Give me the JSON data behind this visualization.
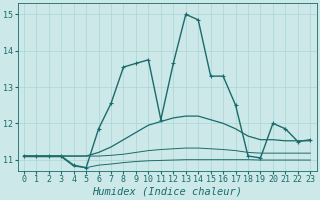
{
  "xlabel": "Humidex (Indice chaleur)",
  "ylabel": "",
  "background_color": "#cce8e8",
  "line_color": "#1a6b6b",
  "xlim": [
    -0.5,
    23.5
  ],
  "ylim": [
    10.7,
    15.3
  ],
  "yticks": [
    11,
    12,
    13,
    14,
    15
  ],
  "xticks": [
    0,
    1,
    2,
    3,
    4,
    5,
    6,
    7,
    8,
    9,
    10,
    11,
    12,
    13,
    14,
    15,
    16,
    17,
    18,
    19,
    20,
    21,
    22,
    23
  ],
  "lines": [
    {
      "x": [
        0,
        1,
        2,
        3,
        4,
        5,
        6,
        7,
        8,
        9,
        10,
        11,
        12,
        13,
        14,
        15,
        16,
        17,
        18,
        19,
        20,
        21,
        22,
        23
      ],
      "y": [
        11.1,
        11.1,
        11.1,
        11.1,
        10.85,
        10.78,
        11.85,
        12.55,
        13.55,
        13.65,
        13.75,
        12.1,
        13.65,
        15.0,
        14.85,
        13.3,
        13.3,
        12.5,
        11.1,
        11.05,
        12.0,
        11.85,
        11.5,
        11.55
      ],
      "marker": "+",
      "lw": 1.0
    },
    {
      "x": [
        0,
        1,
        2,
        3,
        4,
        5,
        6,
        7,
        8,
        9,
        10,
        11,
        12,
        13,
        14,
        15,
        16,
        17,
        18,
        19,
        20,
        21,
        22,
        23
      ],
      "y": [
        11.1,
        11.1,
        11.1,
        11.1,
        11.1,
        11.1,
        11.2,
        11.35,
        11.55,
        11.75,
        11.95,
        12.05,
        12.15,
        12.2,
        12.2,
        12.1,
        12.0,
        11.85,
        11.65,
        11.55,
        11.55,
        11.52,
        11.52,
        11.52
      ],
      "marker": null,
      "lw": 0.9
    },
    {
      "x": [
        0,
        1,
        2,
        3,
        4,
        5,
        6,
        7,
        8,
        9,
        10,
        11,
        12,
        13,
        14,
        15,
        16,
        17,
        18,
        19,
        20,
        21,
        22,
        23
      ],
      "y": [
        11.1,
        11.1,
        11.1,
        11.1,
        11.1,
        11.1,
        11.1,
        11.12,
        11.15,
        11.2,
        11.25,
        11.28,
        11.3,
        11.32,
        11.32,
        11.3,
        11.28,
        11.25,
        11.2,
        11.18,
        11.18,
        11.18,
        11.18,
        11.18
      ],
      "marker": null,
      "lw": 0.7
    },
    {
      "x": [
        0,
        1,
        2,
        3,
        4,
        5,
        6,
        7,
        8,
        9,
        10,
        11,
        12,
        13,
        14,
        15,
        16,
        17,
        18,
        19,
        20,
        21,
        22,
        23
      ],
      "y": [
        11.08,
        11.08,
        11.08,
        11.08,
        10.82,
        10.78,
        10.85,
        10.88,
        10.92,
        10.95,
        10.97,
        10.98,
        10.99,
        11.0,
        11.0,
        11.0,
        11.0,
        11.0,
        11.0,
        10.99,
        10.99,
        10.99,
        10.99,
        10.99
      ],
      "marker": null,
      "lw": 0.7
    }
  ],
  "grid_color": "#aad4d4",
  "tick_fontsize": 6,
  "label_fontsize": 7.5
}
